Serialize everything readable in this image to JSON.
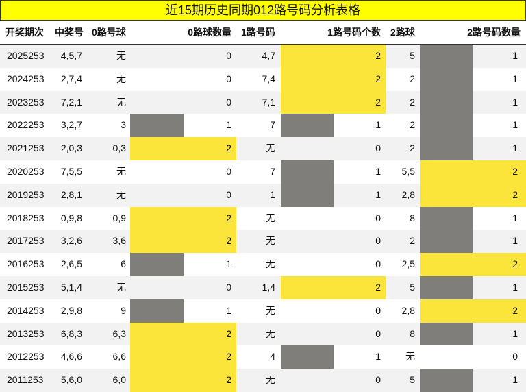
{
  "title": "近15期历史同期012路号码分析表格",
  "table": {
    "header": [
      "开奖期次",
      "中奖号",
      "0路号球",
      "0路球数量",
      "1路号码",
      "1路号码个数",
      "2路球",
      "2路号码数量"
    ],
    "rows": [
      [
        "2025253",
        "4,5,7",
        "无",
        0,
        "4,7",
        2,
        "5",
        1
      ],
      [
        "2024253",
        "2,7,4",
        "无",
        0,
        "7,4",
        2,
        "2",
        1
      ],
      [
        "2023253",
        "7,2,1",
        "无",
        0,
        "7,1",
        2,
        "2",
        1
      ],
      [
        "2022253",
        "3,2,7",
        "3",
        1,
        "7",
        1,
        "2",
        1
      ],
      [
        "2021253",
        "2,0,3",
        "0,3",
        2,
        "无",
        0,
        "2",
        1
      ],
      [
        "2020253",
        "7,5,5",
        "无",
        0,
        "7",
        1,
        "5,5",
        2
      ],
      [
        "2019253",
        "2,8,1",
        "无",
        0,
        "1",
        1,
        "2,8",
        2
      ],
      [
        "2018253",
        "0,9,8",
        "0,9",
        2,
        "无",
        0,
        "8",
        1
      ],
      [
        "2017253",
        "3,2,6",
        "3,6",
        2,
        "无",
        0,
        "2",
        1
      ],
      [
        "2016253",
        "2,6,5",
        "6",
        1,
        "无",
        0,
        "2,5",
        2
      ],
      [
        "2015253",
        "5,1,4",
        "无",
        0,
        "1,4",
        2,
        "5",
        1
      ],
      [
        "2014253",
        "2,9,8",
        "9",
        1,
        "无",
        0,
        "2,8",
        2
      ],
      [
        "2013253",
        "6,8,3",
        "6,3",
        2,
        "无",
        0,
        "8",
        1
      ],
      [
        "2012253",
        "4,6,6",
        "6,6",
        2,
        "4",
        1,
        "无",
        0
      ],
      [
        "2011253",
        "5,6,0",
        "6,0",
        2,
        "无",
        0,
        "5",
        1
      ]
    ]
  }
}
